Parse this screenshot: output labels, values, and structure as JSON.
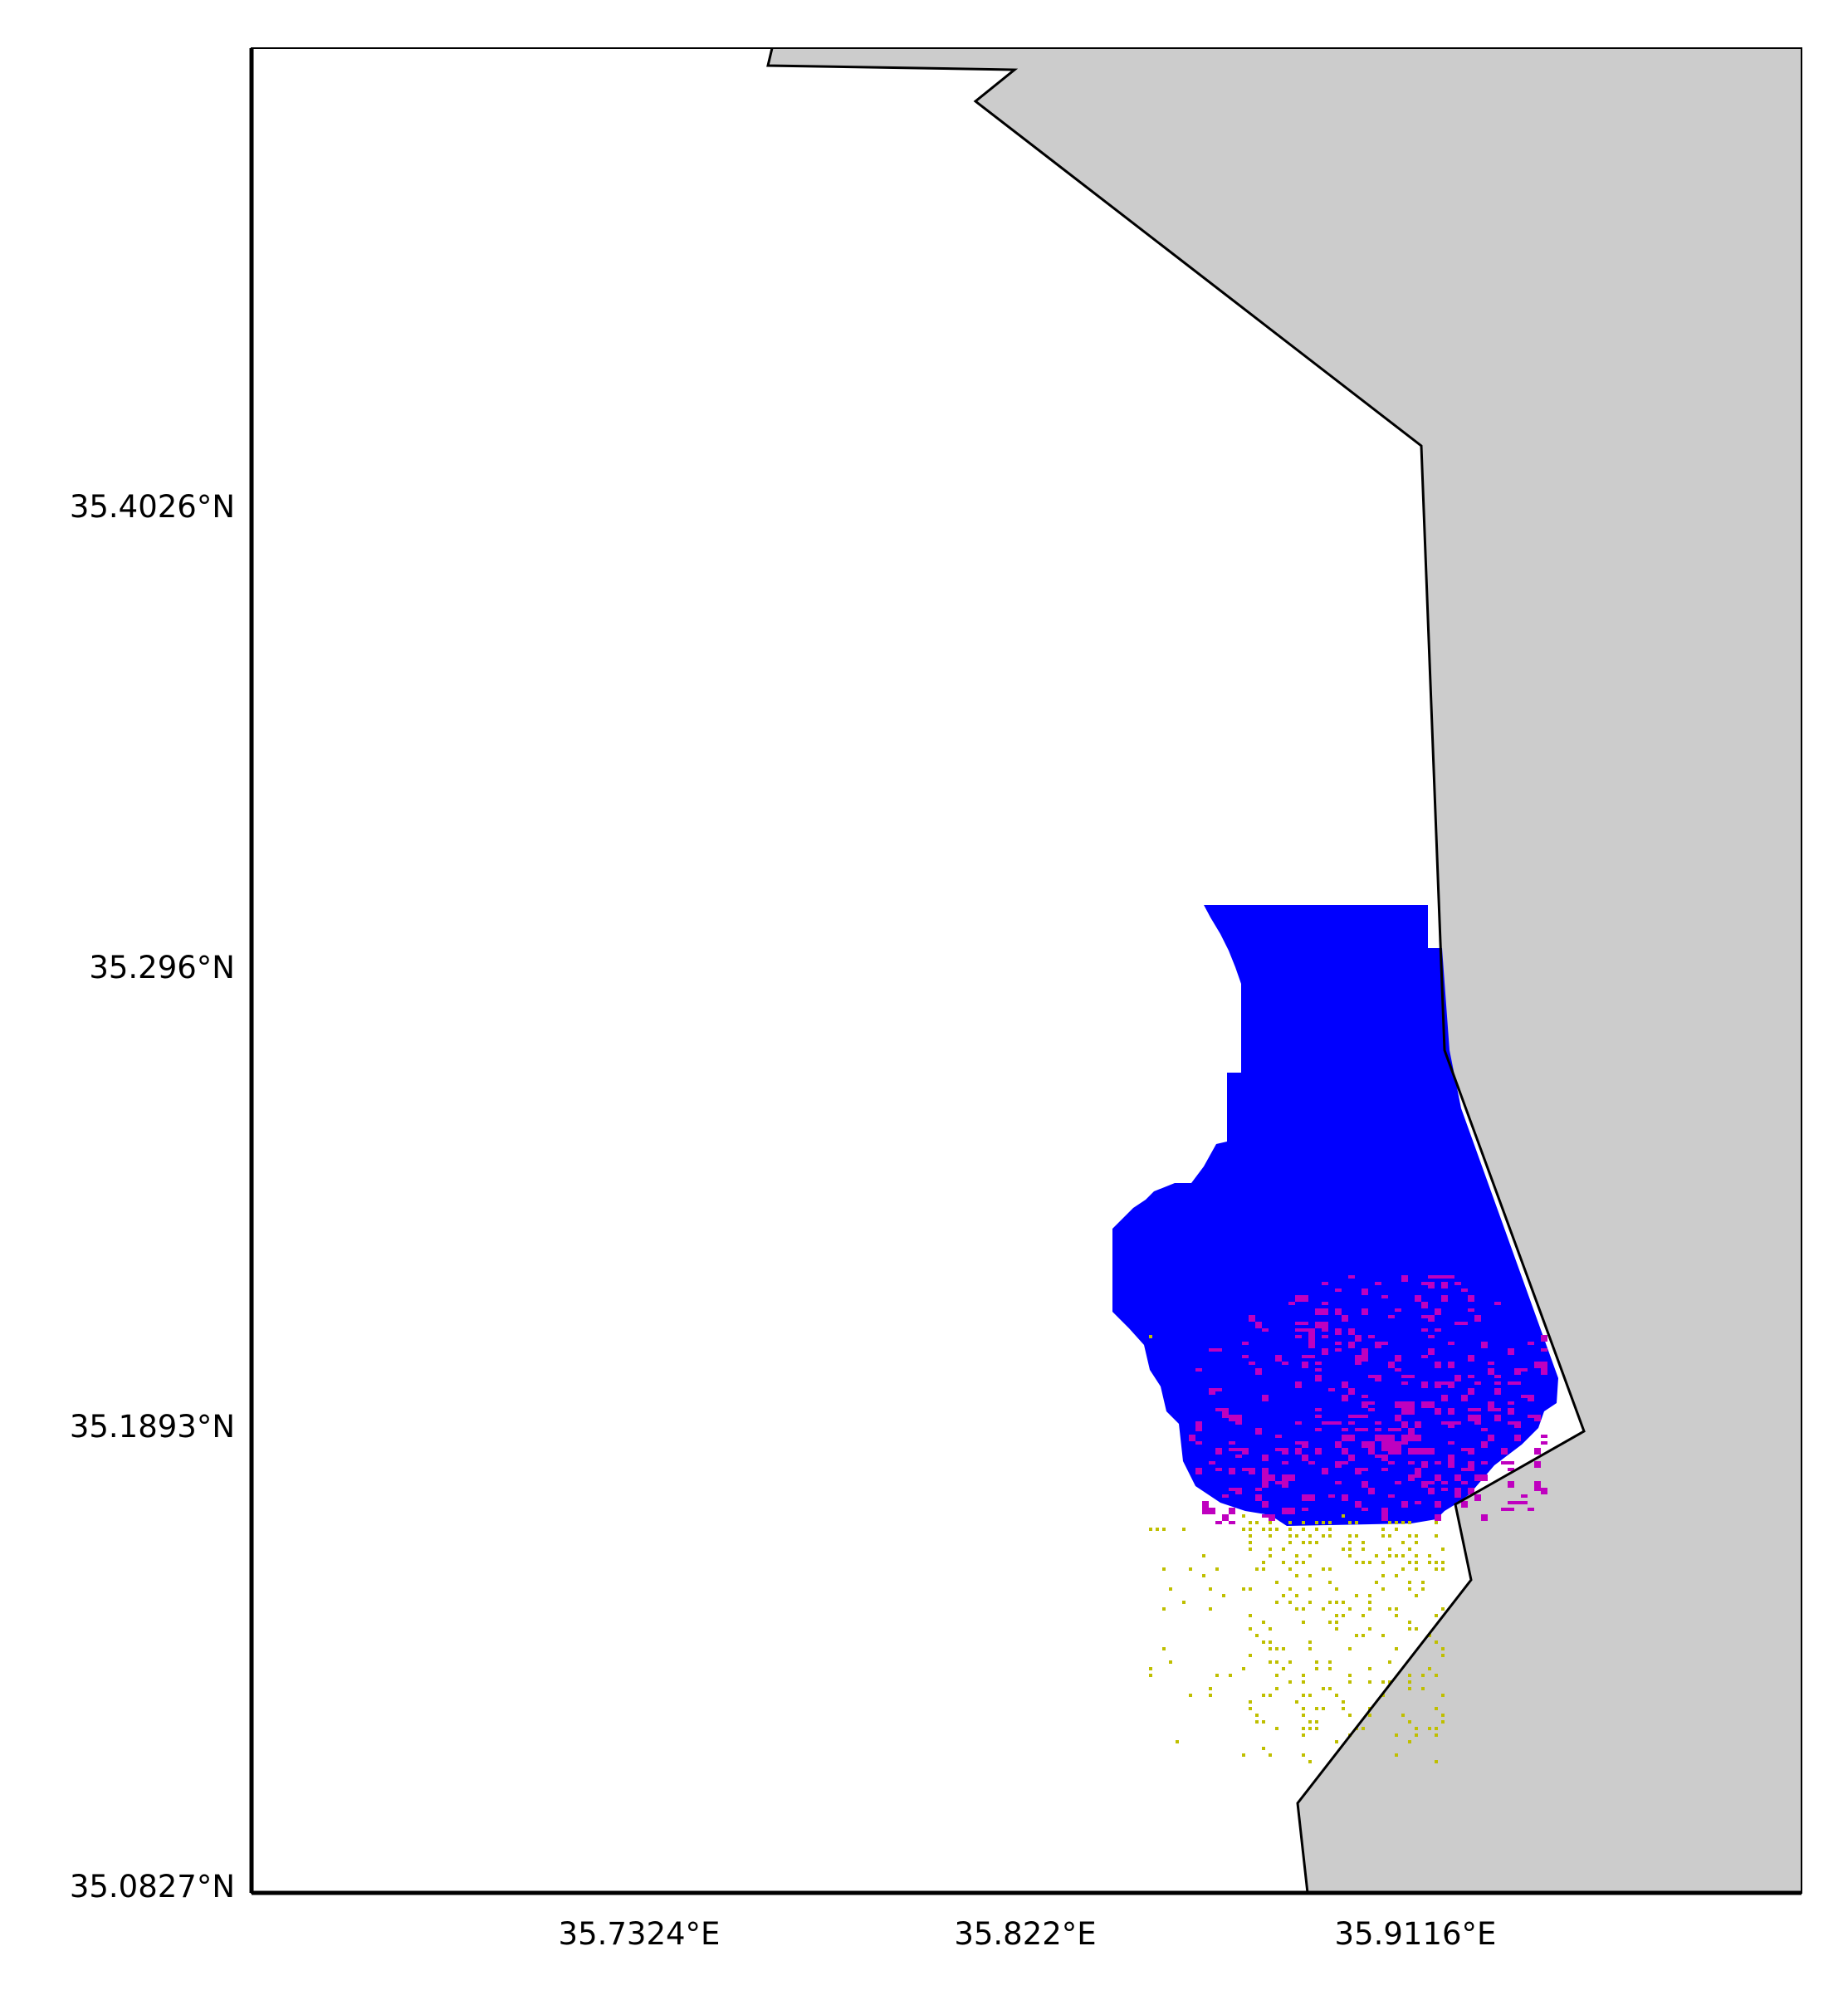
{
  "map": {
    "colors": {
      "land": "#cccccc",
      "sea": "#ffffff",
      "coastline": "#000000",
      "frame": "#000000",
      "region_fill": "#0000ff",
      "overlap_cells": "#bf00bf",
      "outside_cells": "#bfbf00"
    },
    "x_axis": {
      "ticks": [
        {
          "value": 35.7324,
          "label": "35.7324°E"
        },
        {
          "value": 35.822,
          "label": "35.822°E"
        },
        {
          "value": 35.9116,
          "label": "35.9116°E"
        }
      ]
    },
    "y_axis": {
      "ticks": [
        {
          "value": 35.4026,
          "label": "35.4026°N"
        },
        {
          "value": 35.296,
          "label": "35.296°N"
        },
        {
          "value": 35.1893,
          "label": "35.1893°N"
        },
        {
          "value": 35.0827,
          "label": "35.0827°N"
        }
      ]
    },
    "grid": false,
    "legend": "none"
  }
}
